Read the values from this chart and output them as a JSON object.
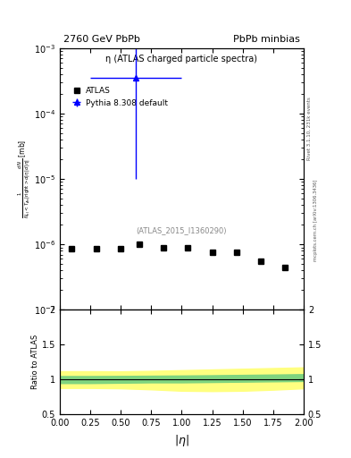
{
  "title_left": "2760 GeV PbPb",
  "title_right": "PbPb minbias",
  "plot_label": "η (ATLAS charged particle spectra)",
  "ref_label": "(ATLAS_2015_I1360290)",
  "right_label_top": "Rivet 3.1.10, 231k events",
  "right_label_bot": "mcplots.cern.ch [arXiv:1306.3436]",
  "ylabel_main": "$\\frac{dN}{d|\\eta|}$ [mb]",
  "ylabel_ratio": "Ratio to ATLAS",
  "xlabel": "$|\\eta|$",
  "xlim": [
    0,
    2
  ],
  "ylim_main": [
    1e-07,
    0.001
  ],
  "ylim_ratio": [
    0.5,
    2.0
  ],
  "atlas_x": [
    0.1,
    0.3,
    0.5,
    0.65,
    0.85,
    1.05,
    1.25,
    1.45,
    1.65,
    1.85
  ],
  "atlas_y": [
    8.5e-07,
    8.5e-07,
    8.5e-07,
    1e-06,
    9e-07,
    9e-07,
    7.5e-07,
    7.5e-07,
    5.5e-07,
    4.5e-07
  ],
  "pythia_x": [
    0.625
  ],
  "pythia_y": [
    0.00035
  ],
  "pythia_xerr": [
    0.375
  ],
  "pythia_yerr_lo": [
    0.00034
  ],
  "pythia_yerr_hi": [
    0.00065
  ],
  "ratio_x": [
    0.0,
    0.25,
    0.5,
    0.75,
    1.0,
    1.25,
    1.5,
    1.75,
    2.0
  ],
  "ratio_green_lo": [
    0.95,
    0.95,
    0.955,
    0.96,
    0.96,
    0.965,
    0.97,
    0.975,
    0.98
  ],
  "ratio_green_hi": [
    1.05,
    1.05,
    1.052,
    1.055,
    1.058,
    1.062,
    1.067,
    1.072,
    1.078
  ],
  "ratio_yellow_lo": [
    0.88,
    0.88,
    0.875,
    0.86,
    0.84,
    0.835,
    0.84,
    0.855,
    0.875
  ],
  "ratio_yellow_hi": [
    1.12,
    1.12,
    1.118,
    1.125,
    1.135,
    1.145,
    1.155,
    1.165,
    1.175
  ],
  "atlas_color": "black",
  "pythia_color": "blue",
  "green_color": "#7FD47F",
  "yellow_color": "#FFFF80"
}
